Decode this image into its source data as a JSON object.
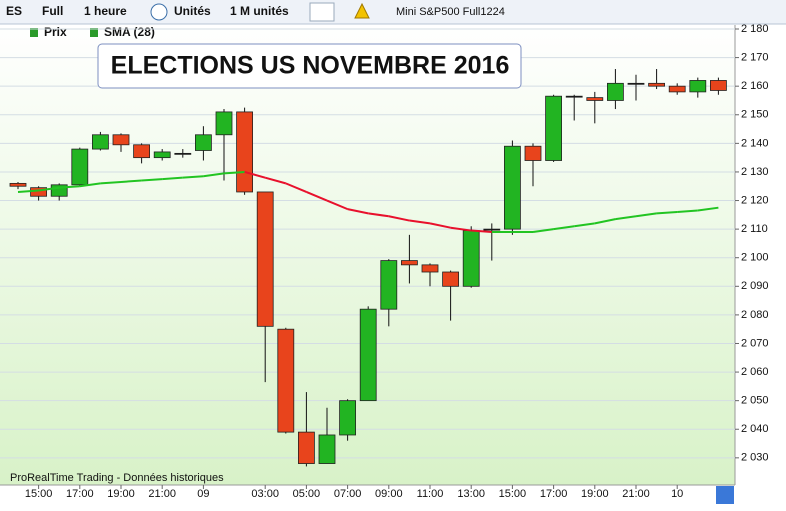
{
  "toolbar": {
    "symbol": "ES",
    "mode": "Full",
    "period": "1 heure",
    "units": "Unités",
    "quantity": "1 M unités",
    "instrument": "Mini S&P500 Full1224",
    "price_tab": "Prix",
    "indicator_tab": "SMA (28)"
  },
  "chart_data": {
    "type": "candlestick",
    "title": "ELECTIONS US NOVEMBRE 2016",
    "footer": "ProRealTime Trading - Données historiques",
    "categories": [
      null,
      "15:00",
      null,
      "17:00",
      null,
      "19:00",
      null,
      "21:00",
      null,
      "09",
      null,
      null,
      "03:00",
      null,
      "05:00",
      null,
      "07:00",
      null,
      "09:00",
      null,
      "11:00",
      null,
      "13:00",
      null,
      "15:00",
      null,
      "17:00",
      null,
      "19:00",
      null,
      "21:00",
      null,
      "10",
      null,
      null
    ],
    "open": [
      2126,
      2124.5,
      2121.5,
      2125.5,
      2138,
      2143,
      2139.5,
      2135,
      2136.5,
      2137.5,
      2143,
      2151,
      2123,
      2075,
      2039,
      2028,
      2038,
      2050,
      2082,
      2099,
      2097.5,
      2095,
      2090,
      2110,
      2110,
      2139,
      2134,
      2156.5,
      2156,
      2155,
      2161,
      2161,
      2160,
      2158,
      2162
    ],
    "high": [
      2126.5,
      2125,
      2126,
      2138.5,
      2144,
      2143.5,
      2140,
      2138,
      2138,
      2146,
      2152,
      2152.5,
      2123,
      2075.5,
      2053,
      2047.5,
      2050.5,
      2083,
      2099.5,
      2108,
      2098,
      2095.5,
      2111,
      2112,
      2141,
      2140,
      2157,
      2157,
      2158,
      2166,
      2164,
      2166,
      2161,
      2163,
      2163
    ],
    "low": [
      2124,
      2120,
      2120,
      2125,
      2137.5,
      2137,
      2133,
      2134,
      2135,
      2134,
      2127,
      2122,
      2056.5,
      2038.5,
      2027,
      2028,
      2036,
      2050,
      2076,
      2091,
      2090,
      2078,
      2089.5,
      2099,
      2108,
      2125,
      2133.5,
      2148,
      2147,
      2152,
      2155,
      2159,
      2157,
      2156,
      2157
    ],
    "close": [
      2125,
      2121.5,
      2125.5,
      2138,
      2143,
      2139.5,
      2135,
      2137,
      2136.5,
      2143,
      2151,
      2123,
      2076,
      2039,
      2028,
      2038,
      2050,
      2082,
      2099,
      2097.5,
      2095,
      2090,
      2109.5,
      2110,
      2139,
      2134,
      2156.5,
      2156.5,
      2155,
      2161,
      2161,
      2160,
      2158,
      2162,
      2158.5
    ],
    "up_color": "#22b422",
    "down_color": "#e8441c",
    "flat_color": "#000000",
    "sma": {
      "values": [
        2123,
        2123.5,
        2124.5,
        2125,
        2126,
        2126.5,
        2127,
        2127.5,
        2128,
        2128.5,
        2129.5,
        2130,
        2128,
        2126,
        2123,
        2120,
        2117,
        2115.5,
        2114.5,
        2113,
        2112,
        2110.5,
        2109.5,
        2109,
        2109,
        2109,
        2110,
        2111,
        2112,
        2113.5,
        2114.5,
        2115.5,
        2116,
        2116.5,
        2117.5
      ],
      "rise_color": "#22c422",
      "fall_color": "#e8102c"
    },
    "ylim": [
      2020.5,
      2181.4
    ],
    "yticks": [
      {
        "value": 2030,
        "label": "2 030"
      },
      {
        "value": 2040,
        "label": "2 040"
      },
      {
        "value": 2050,
        "label": "2 050"
      },
      {
        "value": 2060,
        "label": "2 060"
      },
      {
        "value": 2070,
        "label": "2 070"
      },
      {
        "value": 2080,
        "label": "2 080"
      },
      {
        "value": 2090,
        "label": "2 090"
      },
      {
        "value": 2100,
        "label": "2 100"
      },
      {
        "value": 2110,
        "label": "2 110"
      },
      {
        "value": 2120,
        "label": "2 120"
      },
      {
        "value": 2130,
        "label": "2 130"
      },
      {
        "value": 2140,
        "label": "2 140"
      },
      {
        "value": 2150,
        "label": "2 150"
      },
      {
        "value": 2160,
        "label": "2 160"
      },
      {
        "value": 2170,
        "label": "2 170"
      },
      {
        "value": 2180,
        "label": "2 180"
      }
    ],
    "grid": true
  }
}
